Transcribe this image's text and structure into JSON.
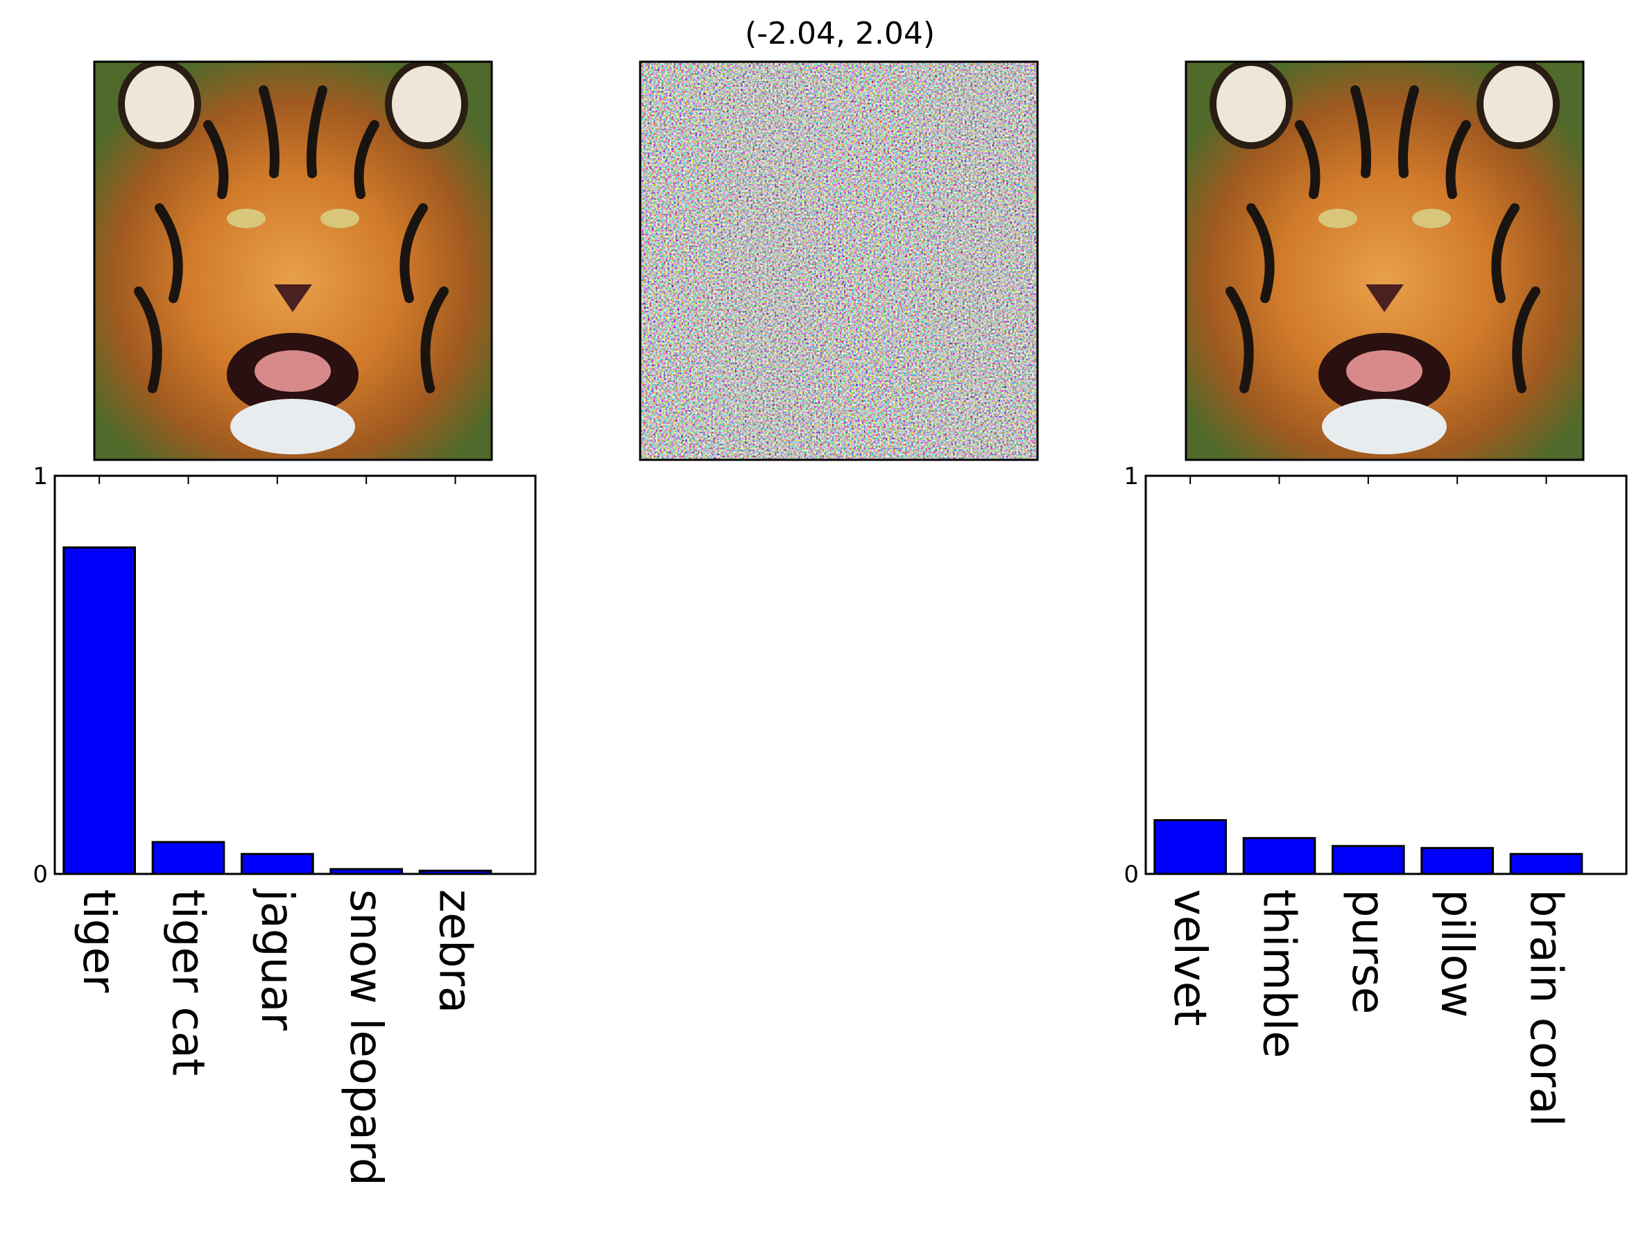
{
  "noise_panel": {
    "title": "(-2.04, 2.04)"
  },
  "chart_data": [
    {
      "type": "bar",
      "name": "original-predictions",
      "categories": [
        "tiger",
        "tiger cat",
        "jaguar",
        "snow leopard",
        "zebra"
      ],
      "values": [
        0.82,
        0.08,
        0.05,
        0.012,
        0.008
      ],
      "ylim": [
        0,
        1
      ],
      "yticks": [
        "0",
        "1"
      ],
      "bar_color": "#0000ff",
      "title": "",
      "xlabel": "",
      "ylabel": ""
    },
    {
      "type": "bar",
      "name": "adversarial-predictions",
      "categories": [
        "velvet",
        "thimble",
        "purse",
        "pillow",
        "brain coral"
      ],
      "values": [
        0.135,
        0.09,
        0.07,
        0.065,
        0.05
      ],
      "ylim": [
        0,
        1
      ],
      "yticks": [
        "0",
        "1"
      ],
      "bar_color": "#0000ff",
      "title": "",
      "xlabel": "",
      "ylabel": ""
    }
  ]
}
